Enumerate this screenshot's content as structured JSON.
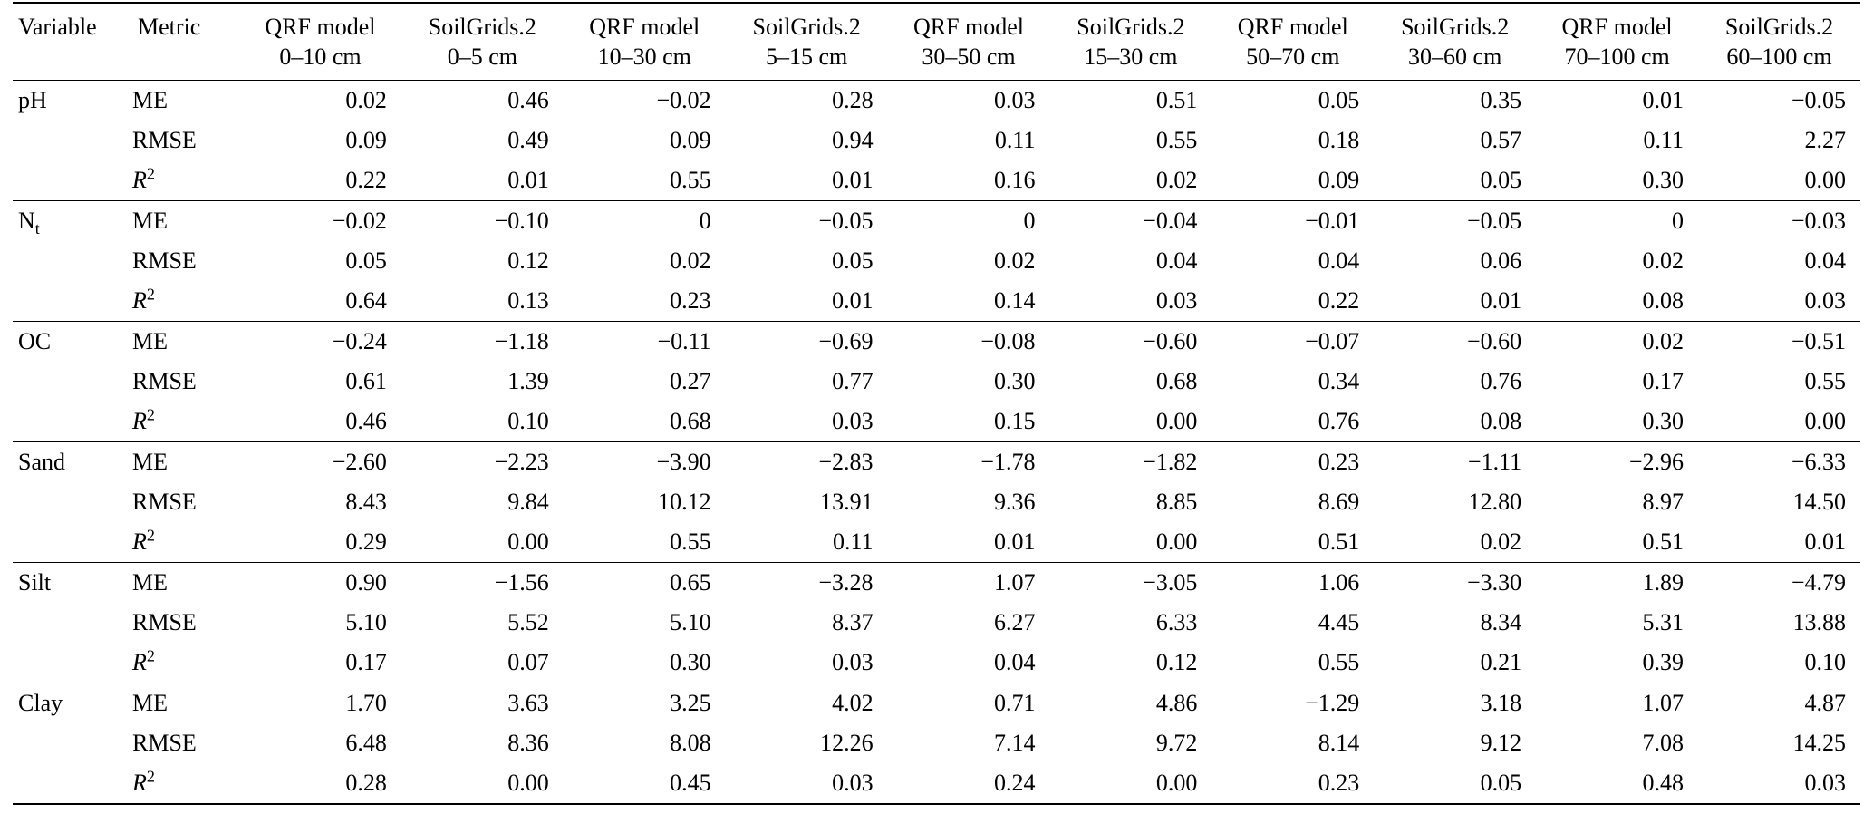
{
  "page": {
    "background": "#ffffff",
    "text_color": "#000000",
    "rule_color": "#000000"
  },
  "table": {
    "columns": [
      {
        "line1": "Variable",
        "line2": ""
      },
      {
        "line1": "Metric",
        "line2": ""
      },
      {
        "line1": "QRF model",
        "line2": "0–10 cm"
      },
      {
        "line1": "SoilGrids.2",
        "line2": "0–5 cm"
      },
      {
        "line1": "QRF model",
        "line2": "10–30 cm"
      },
      {
        "line1": "SoilGrids.2",
        "line2": "5–15 cm"
      },
      {
        "line1": "QRF model",
        "line2": "30–50 cm"
      },
      {
        "line1": "SoilGrids.2",
        "line2": "15–30 cm"
      },
      {
        "line1": "QRF model",
        "line2": "50–70 cm"
      },
      {
        "line1": "SoilGrids.2",
        "line2": "30–60 cm"
      },
      {
        "line1": "QRF model",
        "line2": "70–100 cm"
      },
      {
        "line1": "SoilGrids.2",
        "line2": "60–100 cm"
      }
    ],
    "metrics": [
      {
        "text": "ME",
        "italic": false
      },
      {
        "text": "RMSE",
        "italic": false
      },
      {
        "text": "R",
        "sup": "2",
        "italic": true
      }
    ],
    "groups": [
      {
        "variable": {
          "text": "pH"
        },
        "rows": [
          [
            "0.02",
            "0.46",
            "−0.02",
            "0.28",
            "0.03",
            "0.51",
            "0.05",
            "0.35",
            "0.01",
            "−0.05"
          ],
          [
            "0.09",
            "0.49",
            "0.09",
            "0.94",
            "0.11",
            "0.55",
            "0.18",
            "0.57",
            "0.11",
            "2.27"
          ],
          [
            "0.22",
            "0.01",
            "0.55",
            "0.01",
            "0.16",
            "0.02",
            "0.09",
            "0.05",
            "0.30",
            "0.00"
          ]
        ]
      },
      {
        "variable": {
          "text": "N",
          "sub": "t"
        },
        "rows": [
          [
            "−0.02",
            "−0.10",
            "0",
            "−0.05",
            "0",
            "−0.04",
            "−0.01",
            "−0.05",
            "0",
            "−0.03"
          ],
          [
            "0.05",
            "0.12",
            "0.02",
            "0.05",
            "0.02",
            "0.04",
            "0.04",
            "0.06",
            "0.02",
            "0.04"
          ],
          [
            "0.64",
            "0.13",
            "0.23",
            "0.01",
            "0.14",
            "0.03",
            "0.22",
            "0.01",
            "0.08",
            "0.03"
          ]
        ]
      },
      {
        "variable": {
          "text": "OC"
        },
        "rows": [
          [
            "−0.24",
            "−1.18",
            "−0.11",
            "−0.69",
            "−0.08",
            "−0.60",
            "−0.07",
            "−0.60",
            "0.02",
            "−0.51"
          ],
          [
            "0.61",
            "1.39",
            "0.27",
            "0.77",
            "0.30",
            "0.68",
            "0.34",
            "0.76",
            "0.17",
            "0.55"
          ],
          [
            "0.46",
            "0.10",
            "0.68",
            "0.03",
            "0.15",
            "0.00",
            "0.76",
            "0.08",
            "0.30",
            "0.00"
          ]
        ]
      },
      {
        "variable": {
          "text": "Sand"
        },
        "rows": [
          [
            "−2.60",
            "−2.23",
            "−3.90",
            "−2.83",
            "−1.78",
            "−1.82",
            "0.23",
            "−1.11",
            "−2.96",
            "−6.33"
          ],
          [
            "8.43",
            "9.84",
            "10.12",
            "13.91",
            "9.36",
            "8.85",
            "8.69",
            "12.80",
            "8.97",
            "14.50"
          ],
          [
            "0.29",
            "0.00",
            "0.55",
            "0.11",
            "0.01",
            "0.00",
            "0.51",
            "0.02",
            "0.51",
            "0.01"
          ]
        ]
      },
      {
        "variable": {
          "text": "Silt"
        },
        "rows": [
          [
            "0.90",
            "−1.56",
            "0.65",
            "−3.28",
            "1.07",
            "−3.05",
            "1.06",
            "−3.30",
            "1.89",
            "−4.79"
          ],
          [
            "5.10",
            "5.52",
            "5.10",
            "8.37",
            "6.27",
            "6.33",
            "4.45",
            "8.34",
            "5.31",
            "13.88"
          ],
          [
            "0.17",
            "0.07",
            "0.30",
            "0.03",
            "0.04",
            "0.12",
            "0.55",
            "0.21",
            "0.39",
            "0.10"
          ]
        ]
      },
      {
        "variable": {
          "text": "Clay"
        },
        "rows": [
          [
            "1.70",
            "3.63",
            "3.25",
            "4.02",
            "0.71",
            "4.86",
            "−1.29",
            "3.18",
            "1.07",
            "4.87"
          ],
          [
            "6.48",
            "8.36",
            "8.08",
            "12.26",
            "7.14",
            "9.72",
            "8.14",
            "9.12",
            "7.08",
            "14.25"
          ],
          [
            "0.28",
            "0.00",
            "0.45",
            "0.03",
            "0.24",
            "0.00",
            "0.23",
            "0.05",
            "0.48",
            "0.03"
          ]
        ]
      }
    ]
  }
}
